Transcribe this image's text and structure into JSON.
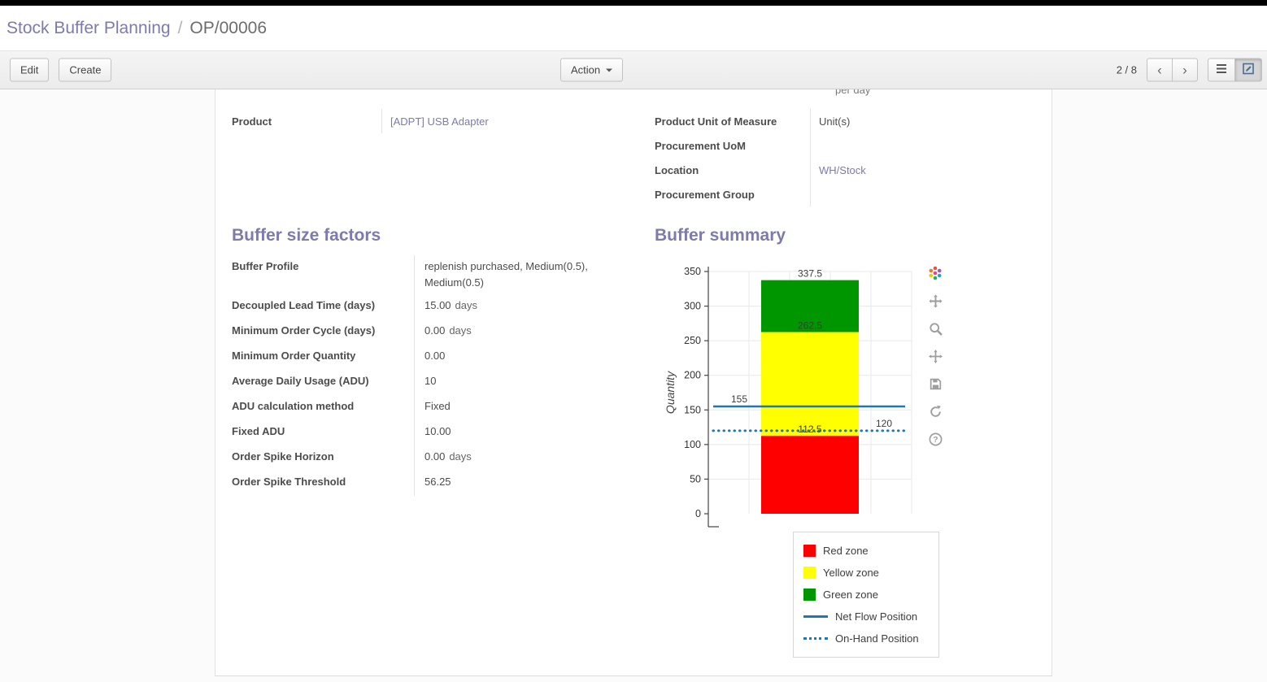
{
  "breadcrumb": {
    "parent": "Stock Buffer Planning",
    "separator": "/",
    "current": "OP/00006"
  },
  "toolbar": {
    "edit": "Edit",
    "create": "Create",
    "action": "Action",
    "pager": "2 / 8",
    "prev": "‹",
    "next": "›"
  },
  "sheet": {
    "clipped_text": "per day",
    "product_group": {
      "rows": [
        {
          "label": "Product",
          "value": "[ADPT] USB Adapter",
          "link": true
        }
      ]
    },
    "uom_group": {
      "rows": [
        {
          "label": "Product Unit of Measure",
          "value": "Unit(s)",
          "link": false
        },
        {
          "label": "Procurement UoM",
          "value": "",
          "link": false
        },
        {
          "label": "Location",
          "value": "WH/Stock",
          "link": true
        },
        {
          "label": "Procurement Group",
          "value": "",
          "link": false
        }
      ]
    },
    "factors": {
      "title": "Buffer size factors",
      "rows": [
        {
          "label": "Buffer Profile",
          "value": "replenish purchased, Medium(0.5), Medium(0.5)",
          "link": true
        },
        {
          "label": "Decoupled Lead Time (days)",
          "value": "15.00",
          "unit": "days"
        },
        {
          "label": "Minimum Order Cycle (days)",
          "value": "0.00",
          "unit": "days"
        },
        {
          "label": "Minimum Order Quantity",
          "value": "0.00"
        },
        {
          "label": "Average Daily Usage (ADU)",
          "value": "10"
        },
        {
          "label": "ADU calculation method",
          "value": "Fixed",
          "link": true
        },
        {
          "label": "Fixed ADU",
          "value": "10.00"
        },
        {
          "label": "Order Spike Horizon",
          "value": "0.00",
          "unit": "days"
        },
        {
          "label": "Order Spike Threshold",
          "value": "56.25"
        }
      ]
    },
    "summary": {
      "title": "Buffer summary"
    }
  },
  "colors": {
    "accent": "#7C7BAD",
    "red_zone": "#ff0000",
    "yellow_zone": "#ffff00",
    "green_zone": "#009600",
    "flow_line": "#1f77b4"
  },
  "chart_toolbar": {
    "icons": [
      "plotly-logo",
      "pan",
      "zoom",
      "autoscale",
      "save",
      "reset",
      "help"
    ]
  },
  "chart_data": {
    "type": "bar",
    "title": "Buffer summary",
    "ylabel": "Quantity",
    "ylim": [
      0,
      350
    ],
    "yticks": [
      0,
      50,
      100,
      150,
      200,
      250,
      300,
      350
    ],
    "series": [
      {
        "name": "Red zone",
        "from": 0,
        "to": 112.5,
        "color": "#ff0000"
      },
      {
        "name": "Yellow zone",
        "from": 112.5,
        "to": 262.5,
        "color": "#ffff00"
      },
      {
        "name": "Green zone",
        "from": 262.5,
        "to": 337.5,
        "color": "#009600"
      }
    ],
    "markers": [
      {
        "name": "Net Flow Position",
        "value": 155,
        "style": "solid",
        "color": "#1f77b4"
      },
      {
        "name": "On-Hand Position",
        "value": 120,
        "style": "dotted",
        "color": "#1f77b4"
      }
    ],
    "legend_position": "bottom-right",
    "grid": true
  }
}
